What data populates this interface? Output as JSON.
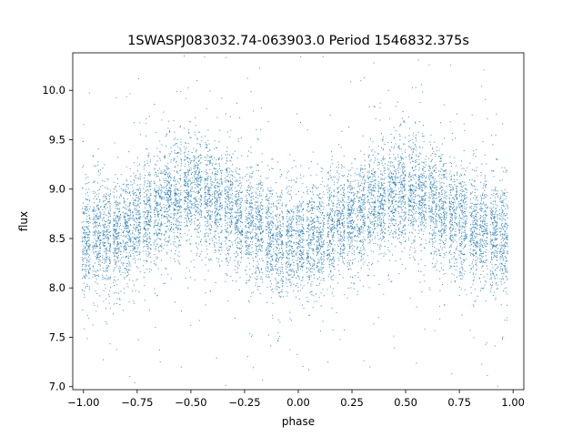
{
  "chart_data": {
    "type": "scatter",
    "title": "1SWASPJ083032.74-063903.0 Period 1546832.375s",
    "xlabel": "phase",
    "ylabel": "flux",
    "xlim": [
      -1.05,
      1.05
    ],
    "ylim": [
      6.97,
      10.38
    ],
    "x_ticks": [
      -1.0,
      -0.75,
      -0.5,
      -0.25,
      0.0,
      0.25,
      0.5,
      0.75,
      1.0
    ],
    "x_tick_labels": [
      "−1.00",
      "−0.75",
      "−0.50",
      "−0.25",
      "0.00",
      "0.25",
      "0.50",
      "0.75",
      "1.00"
    ],
    "y_ticks": [
      7.0,
      7.5,
      8.0,
      8.5,
      9.0,
      9.5,
      10.0
    ],
    "y_tick_labels": [
      "7.0",
      "7.5",
      "8.0",
      "8.5",
      "9.0",
      "9.5",
      "10.0"
    ],
    "grid": false,
    "legend": "none",
    "marker_color": "#1f77b4",
    "series": [
      {
        "clusters": [
          {
            "phase": -0.99,
            "flux": 8.5
          },
          {
            "phase": -0.94,
            "flux": 8.52
          },
          {
            "phase": -0.895,
            "flux": 8.52
          },
          {
            "phase": -0.845,
            "flux": 8.56
          },
          {
            "phase": -0.8,
            "flux": 8.62
          },
          {
            "phase": -0.755,
            "flux": 8.68
          },
          {
            "phase": -0.705,
            "flux": 8.74
          },
          {
            "phase": -0.655,
            "flux": 8.8
          },
          {
            "phase": -0.61,
            "flux": 8.86
          },
          {
            "phase": -0.565,
            "flux": 8.92
          },
          {
            "phase": -0.515,
            "flux": 8.96
          },
          {
            "phase": -0.47,
            "flux": 8.96
          },
          {
            "phase": -0.42,
            "flux": 8.94
          },
          {
            "phase": -0.375,
            "flux": 8.88
          },
          {
            "phase": -0.325,
            "flux": 8.8
          },
          {
            "phase": -0.28,
            "flux": 8.72
          },
          {
            "phase": -0.23,
            "flux": 8.64
          },
          {
            "phase": -0.185,
            "flux": 8.58
          },
          {
            "phase": -0.135,
            "flux": 8.52
          },
          {
            "phase": -0.09,
            "flux": 8.48
          },
          {
            "phase": -0.04,
            "flux": 8.46
          },
          {
            "phase": 0.005,
            "flux": 8.48
          },
          {
            "phase": 0.055,
            "flux": 8.5
          },
          {
            "phase": 0.1,
            "flux": 8.54
          },
          {
            "phase": 0.15,
            "flux": 8.6
          },
          {
            "phase": 0.195,
            "flux": 8.66
          },
          {
            "phase": 0.245,
            "flux": 8.72
          },
          {
            "phase": 0.29,
            "flux": 8.78
          },
          {
            "phase": 0.34,
            "flux": 8.84
          },
          {
            "phase": 0.385,
            "flux": 8.9
          },
          {
            "phase": 0.435,
            "flux": 8.94
          },
          {
            "phase": 0.48,
            "flux": 8.96
          },
          {
            "phase": 0.53,
            "flux": 8.96
          },
          {
            "phase": 0.575,
            "flux": 8.92
          },
          {
            "phase": 0.625,
            "flux": 8.86
          },
          {
            "phase": 0.67,
            "flux": 8.8
          },
          {
            "phase": 0.72,
            "flux": 8.72
          },
          {
            "phase": 0.765,
            "flux": 8.66
          },
          {
            "phase": 0.815,
            "flux": 8.6
          },
          {
            "phase": 0.86,
            "flux": 8.56
          },
          {
            "phase": 0.91,
            "flux": 8.52
          },
          {
            "phase": 0.955,
            "flux": 8.5
          }
        ],
        "flux_spread": 0.28,
        "phase_spread": 0.012
      }
    ]
  }
}
